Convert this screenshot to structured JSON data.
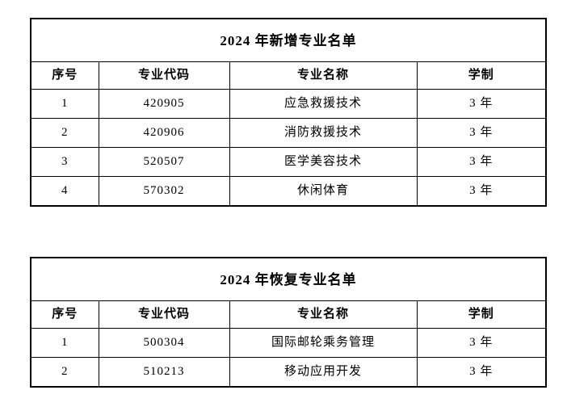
{
  "page": {
    "background_color": "#ffffff",
    "border_color": "#000000",
    "text_color": "#000000"
  },
  "tables": [
    {
      "title": "2024 年新增专业名单",
      "columns": [
        "序号",
        "专业代码",
        "专业名称",
        "学制"
      ],
      "rows": [
        [
          "1",
          "420905",
          "应急救援技术",
          "3 年"
        ],
        [
          "2",
          "420906",
          "消防救援技术",
          "3 年"
        ],
        [
          "3",
          "520507",
          "医学美容技术",
          "3 年"
        ],
        [
          "4",
          "570302",
          "休闲体育",
          "3 年"
        ]
      ]
    },
    {
      "title": "2024 年恢复专业名单",
      "columns": [
        "序号",
        "专业代码",
        "专业名称",
        "学制"
      ],
      "rows": [
        [
          "1",
          "500304",
          "国际邮轮乘务管理",
          "3 年"
        ],
        [
          "2",
          "510213",
          "移动应用开发",
          "3 年"
        ]
      ]
    }
  ]
}
